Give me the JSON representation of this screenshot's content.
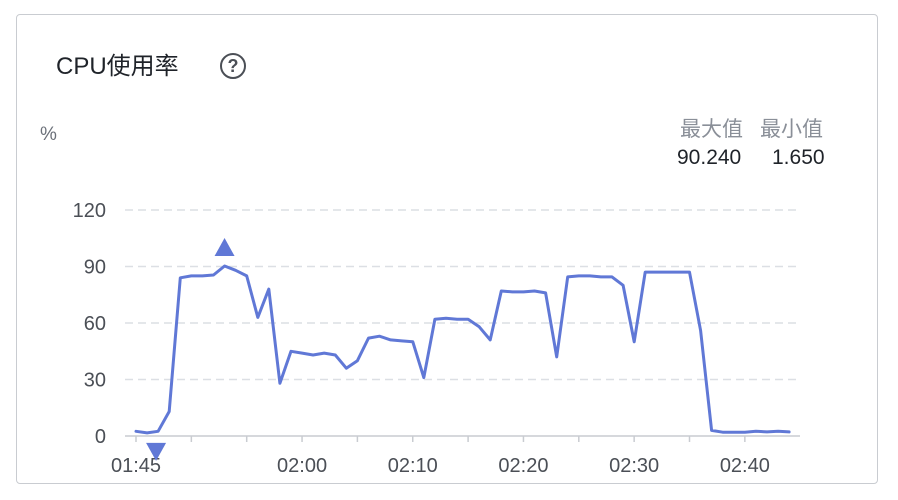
{
  "chart_data": {
    "type": "line",
    "title": "CPU使用率",
    "ylabel": "%",
    "ylim": [
      0,
      120
    ],
    "yticks": [
      0,
      30,
      60,
      90,
      120
    ],
    "xticks": [
      "01:45",
      "02:00",
      "02:10",
      "02:20",
      "02:30",
      "02:40"
    ],
    "xtick_minutes": [
      0,
      15,
      25,
      35,
      45,
      55
    ],
    "x_minutes": [
      0,
      1,
      2,
      3,
      4,
      5,
      6,
      7,
      8,
      9,
      10,
      11,
      12,
      13,
      14,
      15,
      16,
      17,
      18,
      19,
      20,
      21,
      22,
      23,
      24,
      25,
      26,
      27,
      28,
      29,
      30,
      31,
      32,
      33,
      34,
      35,
      36,
      37,
      38,
      39,
      40,
      41,
      42,
      43,
      44,
      45,
      46,
      47,
      48,
      49,
      50,
      51,
      52,
      53,
      54,
      55,
      56,
      57,
      58,
      59
    ],
    "series": [
      {
        "values": [
          2.5,
          1.65,
          2.5,
          13,
          84,
          85,
          85,
          85.5,
          90.24,
          88,
          85,
          63,
          78,
          28,
          45,
          44,
          43,
          44,
          43,
          36,
          40,
          52,
          53,
          51,
          50.5,
          50,
          31,
          62,
          62.5,
          62,
          62,
          58,
          51,
          77,
          76.5,
          76.5,
          77,
          76,
          42,
          84.5,
          85,
          85,
          84.5,
          84.5,
          80,
          50,
          87,
          87,
          87,
          87,
          87,
          56,
          3,
          2,
          2,
          2,
          2.5,
          2.2,
          2.5,
          2.2
        ]
      }
    ],
    "color": "#6078d6",
    "grid": true,
    "max_marker_index": 8,
    "min_marker_index": 1
  },
  "stats": {
    "max_label": "最大值",
    "min_label": "最小值",
    "max_value": "90.240",
    "min_value": "1.650"
  }
}
